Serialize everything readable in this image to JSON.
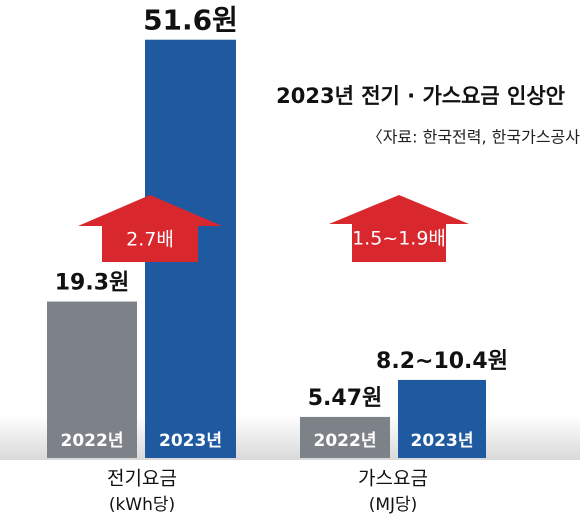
{
  "title": "2023년 전기 · 가스요금 인상안",
  "source": "〈자료: 한국전력, 한국가스공사",
  "chart_data": [
    {
      "type": "bar",
      "title": "전기요금",
      "subtitle": "(kWh당)",
      "categories": [
        "2022년",
        "2023년"
      ],
      "values": [
        19.3,
        51.6
      ],
      "value_labels": [
        "19.3원",
        "51.6원"
      ],
      "colors": [
        "#7d8188",
        "#1f5aa0"
      ],
      "ylim": [
        0,
        56.5
      ],
      "annotation": "2.7배",
      "annotation_color": "#d9272e"
    },
    {
      "type": "bar",
      "title": "가스요금",
      "subtitle": "(MJ당)",
      "categories": [
        "2022년",
        "2023년"
      ],
      "values": [
        5.47,
        10.4
      ],
      "value_labels": [
        "5.47원",
        "8.2~10.4원"
      ],
      "colors": [
        "#7d8188",
        "#1f5aa0"
      ],
      "ylim": [
        0,
        61
      ],
      "annotation": "1.5~1.9배",
      "annotation_color": "#d9272e"
    }
  ]
}
